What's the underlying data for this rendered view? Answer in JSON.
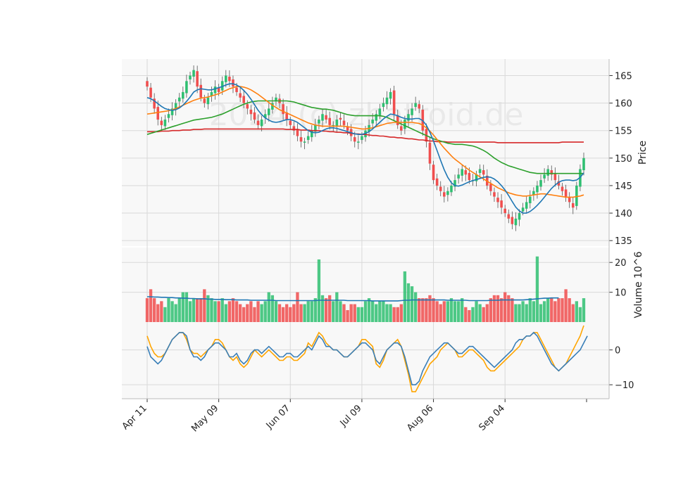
{
  "watermark": "2024 (c) zhatroid.de",
  "colors": {
    "up": "#2fbf71",
    "down": "#f04e4e",
    "sma_fast": "#1f77b4",
    "sma_mid": "#ff7f0e",
    "sma_slow": "#2ca02c",
    "sma_long": "#d62728",
    "vol_ma": "#1f77b4",
    "osc_a": "#3a7fb8",
    "osc_b": "#ffa500",
    "grid": "#d9d9d9",
    "panel_bg": "#f8f8f8"
  },
  "chart_data": {
    "type": "candlestick",
    "x_tick_labels": [
      "Apr 11",
      "May 09",
      "Jun 07",
      "Jul 09",
      "Aug 06",
      "Sep 04"
    ],
    "x_tick_positions": [
      0,
      20,
      40,
      60,
      80,
      100
    ],
    "price": {
      "ylabel": "Price",
      "ylim": [
        134,
        168
      ],
      "yticks": [
        135,
        140,
        145,
        150,
        155,
        160,
        165
      ],
      "close": [
        163,
        161,
        159,
        157,
        156,
        157,
        158,
        159,
        160,
        161,
        162,
        164,
        165,
        166,
        163,
        161,
        160,
        161,
        162,
        163,
        162,
        164,
        165,
        164,
        163,
        162,
        161,
        160,
        159,
        158,
        157,
        156,
        157,
        158,
        159,
        160,
        161,
        160,
        158,
        157,
        156,
        155,
        154,
        153,
        153,
        154,
        155,
        156,
        157,
        158,
        157,
        156,
        156,
        157,
        157,
        156,
        155,
        154,
        153,
        153,
        154,
        155,
        156,
        157,
        158,
        159,
        160,
        161,
        162,
        158,
        156,
        155,
        157,
        158,
        159,
        160,
        159,
        155,
        153,
        149,
        146,
        145,
        144,
        143,
        144,
        145,
        146,
        147,
        148,
        147,
        146,
        146,
        147,
        148,
        147,
        145,
        144,
        143,
        142,
        141,
        140,
        139,
        138,
        139,
        140,
        141,
        142,
        143,
        144,
        145,
        146,
        147,
        148,
        147,
        146,
        145,
        144,
        143,
        142,
        141,
        145,
        148,
        150
      ],
      "sma_fast": [
        161,
        160.8,
        160.4,
        159.9,
        159.4,
        159.0,
        158.8,
        158.7,
        158.8,
        159.1,
        159.6,
        160.3,
        161.1,
        162.0,
        162.4,
        162.6,
        162.5,
        162.4,
        162.4,
        162.6,
        162.8,
        163.0,
        163.3,
        163.5,
        163.5,
        163.3,
        162.9,
        162.3,
        161.6,
        160.7,
        159.7,
        158.7,
        157.9,
        157.3,
        156.9,
        156.6,
        156.5,
        156.6,
        156.8,
        157.0,
        157.0,
        156.8,
        156.5,
        156.0,
        155.5,
        155.0,
        154.7,
        154.6,
        154.7,
        155.0,
        155.3,
        155.5,
        155.5,
        155.4,
        155.2,
        155.0,
        154.8,
        154.6,
        154.4,
        154.3,
        154.3,
        154.5,
        154.8,
        155.3,
        155.9,
        156.5,
        157.1,
        157.6,
        158.0,
        157.9,
        157.7,
        157.4,
        157.2,
        157.1,
        157.1,
        157.2,
        157.2,
        156.8,
        156.0,
        154.7,
        153.1,
        151.4,
        149.6,
        147.9,
        146.5,
        145.5,
        145.0,
        144.9,
        145.1,
        145.4,
        145.7,
        145.9,
        146.1,
        146.3,
        146.5,
        146.6,
        146.5,
        146.2,
        145.7,
        145.0,
        144.2,
        143.2,
        142.1,
        141.1,
        140.4,
        140.0,
        140.0,
        140.3,
        140.8,
        141.4,
        142.1,
        142.9,
        143.7,
        144.5,
        145.1,
        145.6,
        145.9,
        146.0,
        146.0,
        145.9,
        146.0,
        146.5,
        147.3
      ],
      "sma_mid": [
        158.0,
        158.1,
        158.2,
        158.3,
        158.4,
        158.5,
        158.6,
        158.8,
        159.0,
        159.3,
        159.6,
        159.9,
        160.2,
        160.5,
        160.7,
        160.9,
        161.0,
        161.1,
        161.3,
        161.5,
        161.7,
        162.0,
        162.3,
        162.6,
        162.8,
        163.0,
        163.0,
        162.9,
        162.7,
        162.4,
        162.0,
        161.6,
        161.1,
        160.6,
        160.1,
        159.6,
        159.2,
        158.8,
        158.5,
        158.2,
        157.9,
        157.6,
        157.3,
        157.0,
        156.7,
        156.4,
        156.2,
        156.0,
        155.9,
        155.8,
        155.8,
        155.8,
        155.8,
        155.8,
        155.8,
        155.8,
        155.7,
        155.6,
        155.5,
        155.4,
        155.3,
        155.3,
        155.4,
        155.5,
        155.7,
        155.9,
        156.1,
        156.3,
        156.4,
        156.5,
        156.5,
        156.5,
        156.5,
        156.5,
        156.5,
        156.4,
        156.3,
        156.0,
        155.5,
        154.9,
        154.2,
        153.4,
        152.6,
        151.8,
        151.1,
        150.4,
        149.8,
        149.3,
        148.8,
        148.3,
        147.8,
        147.4,
        147.0,
        146.6,
        146.2,
        145.8,
        145.4,
        145.0,
        144.6,
        144.3,
        144.0,
        143.7,
        143.5,
        143.3,
        143.2,
        143.1,
        143.1,
        143.2,
        143.3,
        143.4,
        143.5,
        143.5,
        143.4,
        143.3,
        143.2,
        143.1,
        143.0,
        142.9,
        142.9,
        142.9,
        143.0,
        143.1,
        143.3
      ],
      "sma_slow": [
        154.3,
        154.5,
        154.7,
        154.9,
        155.1,
        155.3,
        155.5,
        155.7,
        155.9,
        156.1,
        156.3,
        156.5,
        156.7,
        156.9,
        157.0,
        157.1,
        157.2,
        157.3,
        157.4,
        157.6,
        157.8,
        158.0,
        158.3,
        158.6,
        158.9,
        159.2,
        159.5,
        159.8,
        160.0,
        160.2,
        160.3,
        160.4,
        160.4,
        160.4,
        160.4,
        160.4,
        160.4,
        160.4,
        160.4,
        160.4,
        160.3,
        160.2,
        160.0,
        159.8,
        159.6,
        159.4,
        159.2,
        159.1,
        159.0,
        158.9,
        158.9,
        158.8,
        158.7,
        158.5,
        158.3,
        158.1,
        157.9,
        157.8,
        157.7,
        157.7,
        157.7,
        157.7,
        157.7,
        157.7,
        157.7,
        157.7,
        157.6,
        157.4,
        157.1,
        156.8,
        156.5,
        156.2,
        155.9,
        155.6,
        155.3,
        155.0,
        154.7,
        154.4,
        154.1,
        153.8,
        153.5,
        153.3,
        153.1,
        152.9,
        152.7,
        152.6,
        152.5,
        152.5,
        152.5,
        152.4,
        152.3,
        152.2,
        152.0,
        151.7,
        151.4,
        151.0,
        150.5,
        150.0,
        149.6,
        149.2,
        148.9,
        148.6,
        148.4,
        148.2,
        148.0,
        147.8,
        147.6,
        147.4,
        147.3,
        147.2,
        147.2,
        147.2,
        147.2,
        147.2,
        147.2,
        147.2,
        147.2,
        147.2,
        147.2,
        147.2,
        147.2,
        147.2,
        147.2
      ],
      "sma_long": [
        154.8,
        154.8,
        154.8,
        154.8,
        154.9,
        154.9,
        154.9,
        155.0,
        155.0,
        155.0,
        155.1,
        155.1,
        155.1,
        155.2,
        155.2,
        155.2,
        155.3,
        155.3,
        155.3,
        155.3,
        155.3,
        155.3,
        155.3,
        155.3,
        155.3,
        155.3,
        155.3,
        155.3,
        155.3,
        155.3,
        155.3,
        155.3,
        155.3,
        155.3,
        155.3,
        155.3,
        155.3,
        155.3,
        155.3,
        155.2,
        155.2,
        155.2,
        155.2,
        155.1,
        155.1,
        155.1,
        155.0,
        155.0,
        155.0,
        154.9,
        154.9,
        154.8,
        154.8,
        154.7,
        154.7,
        154.6,
        154.6,
        154.5,
        154.4,
        154.4,
        154.3,
        154.3,
        154.2,
        154.1,
        154.1,
        154.0,
        154.0,
        153.9,
        153.8,
        153.8,
        153.7,
        153.7,
        153.6,
        153.5,
        153.5,
        153.4,
        153.3,
        153.3,
        153.2,
        153.1,
        153.1,
        153.0,
        153.0,
        153.0,
        152.9,
        152.9,
        152.9,
        152.9,
        152.9,
        152.9,
        152.9,
        152.9,
        152.9,
        152.9,
        152.9,
        152.9,
        152.9,
        152.9,
        152.8,
        152.8,
        152.8,
        152.8,
        152.8,
        152.8,
        152.8,
        152.8,
        152.8,
        152.8,
        152.8,
        152.8,
        152.8,
        152.8,
        152.8,
        152.8,
        152.8,
        152.8,
        152.9,
        152.9,
        152.9,
        152.9,
        152.9,
        152.9,
        152.9
      ]
    },
    "volume": {
      "ylabel": "Volume  10^6",
      "ylim": [
        0,
        25
      ],
      "yticks": [
        10,
        20
      ],
      "values": [
        8,
        11,
        8,
        6,
        7,
        5,
        8,
        7,
        6,
        8,
        10,
        10,
        7,
        8,
        8,
        8,
        11,
        9,
        8,
        7,
        7,
        8,
        6,
        7,
        8,
        7,
        6,
        5,
        6,
        7,
        5,
        7,
        6,
        7,
        10,
        9,
        7,
        6,
        5,
        6,
        5,
        6,
        10,
        6,
        6,
        7,
        7,
        8,
        21,
        9,
        8,
        9,
        7,
        10,
        7,
        6,
        4,
        6,
        6,
        5,
        5,
        7,
        8,
        7,
        6,
        7,
        7,
        6,
        6,
        5,
        5,
        6,
        17,
        13,
        12,
        10,
        8,
        8,
        8,
        9,
        8,
        7,
        6,
        7,
        7,
        8,
        7,
        7,
        8,
        5,
        4,
        5,
        7,
        6,
        5,
        6,
        8,
        9,
        9,
        8,
        10,
        9,
        8,
        6,
        6,
        7,
        6,
        8,
        7,
        22,
        6,
        7,
        8,
        8,
        7,
        8
      ],
      "ma": [
        8.5,
        8.5,
        8.4,
        8.4,
        8.3,
        8.3,
        8.2,
        8.2,
        8.1,
        8.1,
        8.0,
        8.0,
        7.9,
        7.9,
        7.8,
        7.8,
        7.8,
        7.7,
        7.7,
        7.6,
        7.6,
        7.6,
        7.5,
        7.5,
        7.5,
        7.4,
        7.4,
        7.4,
        7.4,
        7.3,
        7.3,
        7.3,
        7.3,
        7.3,
        7.3,
        7.3,
        7.2,
        7.2,
        7.2,
        7.2,
        7.2,
        7.2,
        7.2,
        7.2,
        7.2,
        7.2,
        7.2,
        7.2,
        7.3,
        7.3,
        7.3,
        7.3,
        7.3,
        7.3,
        7.3,
        7.3,
        7.2,
        7.2,
        7.2,
        7.2,
        7.2,
        7.2,
        7.2,
        7.1,
        7.1,
        7.1,
        7.1,
        7.1,
        7.1,
        7.1,
        7.1,
        7.2,
        7.3,
        7.3,
        7.4,
        7.4,
        7.4,
        7.4,
        7.4,
        7.4,
        7.4,
        7.4,
        7.4,
        7.4,
        7.3,
        7.3,
        7.3,
        7.3,
        7.3,
        7.3,
        7.2,
        7.2,
        7.2,
        7.2,
        7.2,
        7.2,
        7.3,
        7.3,
        7.3,
        7.4,
        7.4,
        7.4,
        7.4,
        7.4,
        7.4,
        7.4,
        7.5,
        7.6,
        7.7,
        7.8,
        7.9,
        8.0,
        8.0,
        8.1,
        8.1,
        8.1
      ]
    },
    "oscillator": {
      "ylim": [
        -14,
        8
      ],
      "yticks": [
        -10,
        0
      ],
      "line_a": [
        1,
        -2,
        -3,
        -4,
        -3,
        -1,
        1,
        3,
        4,
        5,
        5,
        4,
        0,
        -2,
        -2,
        -3,
        -2,
        0,
        1,
        2,
        2,
        1,
        0,
        -2,
        -2,
        -1,
        -3,
        -4,
        -3,
        -1,
        0,
        0,
        -1,
        0,
        1,
        0,
        -1,
        -2,
        -2,
        -1,
        -1,
        -2,
        -2,
        -1,
        0,
        1,
        0,
        2,
        4,
        3,
        1,
        1,
        0,
        0,
        -1,
        -2,
        -2,
        -1,
        0,
        1,
        2,
        2,
        1,
        0,
        -3,
        -4,
        -2,
        0,
        1,
        2,
        2,
        1,
        -2,
        -6,
        -10,
        -10,
        -9,
        -6,
        -4,
        -2,
        -1,
        0,
        1,
        2,
        2,
        1,
        0,
        -1,
        -1,
        0,
        1,
        1,
        0,
        -1,
        -2,
        -3,
        -4,
        -5,
        -4,
        -3,
        -2,
        -1,
        0,
        2,
        3,
        3,
        4,
        4,
        5,
        4,
        2,
        0,
        -2,
        -4,
        -5,
        -6,
        -5,
        -4,
        -3,
        -2,
        -1,
        0,
        2,
        4
      ],
      "line_b": [
        4,
        1,
        -1,
        -2,
        -2,
        -1,
        1,
        3,
        4,
        5,
        5,
        3,
        0,
        -1,
        -1,
        -2,
        -1,
        0,
        1,
        3,
        3,
        2,
        0,
        -2,
        -3,
        -2,
        -4,
        -5,
        -4,
        -2,
        0,
        -1,
        -2,
        -1,
        0,
        -1,
        -2,
        -3,
        -3,
        -2,
        -2,
        -3,
        -3,
        -2,
        -1,
        2,
        1,
        3,
        5,
        4,
        2,
        1,
        0,
        0,
        -1,
        -2,
        -2,
        -1,
        0,
        1,
        3,
        3,
        2,
        1,
        -4,
        -5,
        -3,
        0,
        1,
        2,
        3,
        1,
        -3,
        -7,
        -12,
        -12,
        -10,
        -8,
        -6,
        -4,
        -3,
        -2,
        0,
        1,
        2,
        1,
        0,
        -2,
        -2,
        -1,
        0,
        0,
        -1,
        -2,
        -3,
        -5,
        -6,
        -6,
        -5,
        -4,
        -3,
        -2,
        -1,
        0,
        1,
        3,
        4,
        4,
        5,
        5,
        3,
        1,
        -1,
        -3,
        -5,
        -6,
        -5,
        -4,
        -2,
        0,
        2,
        4,
        7
      ]
    }
  }
}
